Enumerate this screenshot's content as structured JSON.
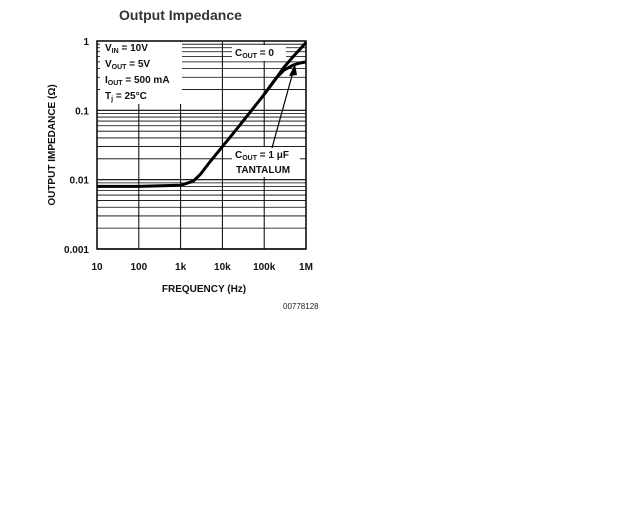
{
  "chart_data": {
    "type": "line",
    "title": "Output Impedance",
    "xlabel": "FREQUENCY (Hz)",
    "ylabel": "OUTPUT IMPEDANCE (Ω)",
    "x_scale": "log",
    "y_scale": "log",
    "xlim": [
      10,
      1000000
    ],
    "ylim": [
      0.001,
      1
    ],
    "x_ticks": [
      {
        "value": 10,
        "label": "10"
      },
      {
        "value": 100,
        "label": "100"
      },
      {
        "value": 1000,
        "label": "1k"
      },
      {
        "value": 10000,
        "label": "10k"
      },
      {
        "value": 100000,
        "label": "100k"
      },
      {
        "value": 1000000,
        "label": "1M"
      }
    ],
    "y_ticks": [
      {
        "value": 1,
        "label": "1"
      },
      {
        "value": 0.1,
        "label": "0.1"
      },
      {
        "value": 0.01,
        "label": "0.01"
      },
      {
        "value": 0.001,
        "label": "0.001"
      }
    ],
    "grid": true,
    "conditions": {
      "vin": {
        "main": "V",
        "sub": "IN",
        "rest": " = 10V"
      },
      "vout": {
        "main": "V",
        "sub": "OUT",
        "rest": " = 5V"
      },
      "iout": {
        "main": "I",
        "sub": "OUT",
        "rest": " = 500 mA"
      },
      "tj": {
        "main": "T",
        "sub": "j",
        "rest": " = 25°C"
      }
    },
    "series": [
      {
        "label": {
          "main": "C",
          "sub": "OUT",
          "rest": " = 0"
        },
        "x": [
          10,
          100,
          1000,
          2000,
          3000,
          5000,
          10000,
          20000,
          50000,
          100000,
          200000,
          300000,
          500000,
          700000,
          1000000
        ],
        "y": [
          0.008,
          0.008,
          0.0083,
          0.0095,
          0.012,
          0.018,
          0.03,
          0.05,
          0.1,
          0.17,
          0.3,
          0.42,
          0.6,
          0.75,
          0.95
        ]
      },
      {
        "label": {
          "main": "C",
          "sub": "OUT",
          "rest": " = 1 μF"
        },
        "label2": "TANTALUM",
        "x": [
          100000,
          200000,
          300000,
          500000,
          700000,
          1000000
        ],
        "y": [
          0.17,
          0.3,
          0.38,
          0.45,
          0.48,
          0.5
        ]
      }
    ]
  },
  "figure_id": "00778128"
}
